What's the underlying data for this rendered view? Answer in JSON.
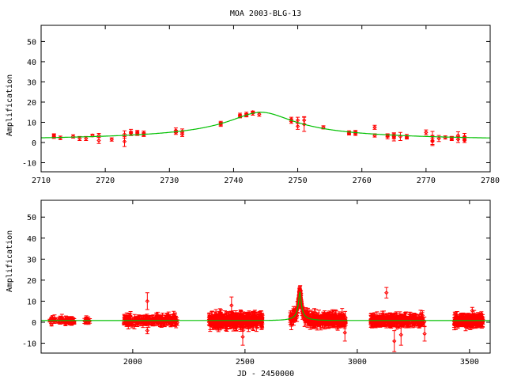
{
  "colors": {
    "data": "#ff0000",
    "model": "#00c000",
    "frame": "#000000"
  },
  "chart_data": [
    {
      "type": "scatter",
      "title": "MOA 2003-BLG-13",
      "xlabel": "",
      "ylabel": "Amplification",
      "xlim": [
        2710,
        2780
      ],
      "ylim": [
        -14.5,
        58
      ],
      "xticks": [
        2710,
        2720,
        2730,
        2740,
        2750,
        2760,
        2770,
        2780
      ],
      "xtick_labels": [
        "2710",
        "2720",
        "2730",
        "2740",
        "2750",
        "2760",
        "2770",
        "2780"
      ],
      "yticks": [
        -10,
        0,
        10,
        20,
        30,
        40,
        50
      ],
      "ytick_labels": [
        "-10",
        "0",
        "10",
        "20",
        "30",
        "40",
        "50"
      ],
      "model": {
        "t0": 2744.3,
        "u0": 0.067,
        "tE": 75
      },
      "points": [
        [
          2712,
          3,
          1
        ],
        [
          2712,
          3.5,
          0.8
        ],
        [
          2713,
          2.3,
          0.9
        ],
        [
          2715,
          3,
          0.8
        ],
        [
          2716,
          2,
          1
        ],
        [
          2717,
          2,
          1
        ],
        [
          2718,
          3.5,
          0.6
        ],
        [
          2719,
          3.5,
          1
        ],
        [
          2719,
          1,
          1.5
        ],
        [
          2721,
          1.5,
          0.8
        ],
        [
          2723,
          0.5,
          2.5
        ],
        [
          2723,
          4,
          1.8
        ],
        [
          2724,
          5,
          1.5
        ],
        [
          2724,
          4.5,
          1
        ],
        [
          2725,
          5,
          1
        ],
        [
          2725,
          4.5,
          1
        ],
        [
          2726,
          4.5,
          1.2
        ],
        [
          2726,
          4,
          1
        ],
        [
          2731,
          6,
          1.2
        ],
        [
          2731,
          5,
          1
        ],
        [
          2732,
          5.5,
          1.2
        ],
        [
          2732,
          4,
          1
        ],
        [
          2738,
          9.5,
          1
        ],
        [
          2738,
          9,
          1
        ],
        [
          2741,
          13.5,
          1
        ],
        [
          2741,
          13,
          0.8
        ],
        [
          2742,
          14,
          1
        ],
        [
          2742,
          13.5,
          0.8
        ],
        [
          2743,
          14.5,
          1
        ],
        [
          2743,
          15,
          0.6
        ],
        [
          2744,
          14,
          1
        ],
        [
          2749,
          11.5,
          1
        ],
        [
          2749,
          10.5,
          1
        ],
        [
          2750,
          11,
          1.5
        ],
        [
          2750,
          8,
          1.5
        ],
        [
          2751,
          11,
          1.8
        ],
        [
          2751,
          9,
          3.5
        ],
        [
          2754,
          7.5,
          0.8
        ],
        [
          2758,
          5,
          0.8
        ],
        [
          2758,
          4.5,
          0.8
        ],
        [
          2759,
          5,
          1
        ],
        [
          2759,
          4.5,
          1
        ],
        [
          2762,
          7.5,
          1
        ],
        [
          2762,
          3.5,
          0.8
        ],
        [
          2764,
          3.5,
          0.8
        ],
        [
          2764,
          3,
          1.2
        ],
        [
          2765,
          3.5,
          1.2
        ],
        [
          2765,
          3,
          1.2
        ],
        [
          2765,
          2.8,
          2
        ],
        [
          2766,
          3,
          2
        ],
        [
          2767,
          3,
          1
        ],
        [
          2767,
          2.5,
          0.8
        ],
        [
          2770,
          5,
          1.2
        ],
        [
          2771,
          3,
          2.5
        ],
        [
          2771,
          1,
          2.5
        ],
        [
          2771,
          0.5,
          1.5
        ],
        [
          2772,
          2,
          1.5
        ],
        [
          2773,
          2.5,
          0.8
        ],
        [
          2774,
          2.2,
          0.8
        ],
        [
          2774,
          2,
          1
        ],
        [
          2775,
          3.5,
          1.8
        ],
        [
          2775,
          1.5,
          1.5
        ],
        [
          2776,
          3,
          1.5
        ],
        [
          2776,
          1.5,
          1.5
        ],
        [
          2776,
          1,
          1
        ]
      ]
    },
    {
      "type": "scatter",
      "title": "",
      "xlabel": "JD - 2450000",
      "ylabel": "Amplification",
      "xlim": [
        1592,
        3592
      ],
      "ylim": [
        -14.7,
        58
      ],
      "xticks": [
        2000,
        2500,
        3000,
        3500
      ],
      "xtick_labels": [
        "2000",
        "2500",
        "3000",
        "3500"
      ],
      "yticks": [
        -10,
        0,
        10,
        20,
        30,
        40,
        50
      ],
      "ytick_labels": [
        "-10",
        "0",
        "10",
        "20",
        "30",
        "40",
        "50"
      ],
      "model": {
        "t0": 2744.3,
        "u0": 0.067,
        "tE": 75,
        "baseline_offset": -0.2
      },
      "seasons": [
        {
          "start": 1630,
          "end": 1740,
          "n": 60,
          "scatter": 1.2,
          "err": 1
        },
        {
          "start": 1780,
          "end": 1810,
          "n": 10,
          "scatter": 1,
          "err": 1
        },
        {
          "start": 1960,
          "end": 2200,
          "n": 180,
          "scatter": 1.5,
          "err": 1.5
        },
        {
          "start": 2340,
          "end": 2580,
          "n": 320,
          "scatter": 2,
          "err": 2
        },
        {
          "start": 2700,
          "end": 2950,
          "n": 300,
          "scatter": 1.8,
          "err": 2
        },
        {
          "start": 3060,
          "end": 3300,
          "n": 260,
          "scatter": 1.5,
          "err": 1.8
        },
        {
          "start": 3430,
          "end": 3560,
          "n": 200,
          "scatter": 1.5,
          "err": 1.8
        }
      ],
      "outliers": [
        [
          2065,
          10,
          4
        ],
        [
          2065,
          -4,
          1.5
        ],
        [
          2440,
          8,
          4
        ],
        [
          2490,
          -7,
          4
        ],
        [
          3130,
          14,
          2.5
        ],
        [
          3165,
          -9,
          5
        ],
        [
          3195,
          -6,
          5
        ],
        [
          3300,
          -5.5,
          3.5
        ],
        [
          2945,
          -5,
          4
        ]
      ]
    }
  ]
}
